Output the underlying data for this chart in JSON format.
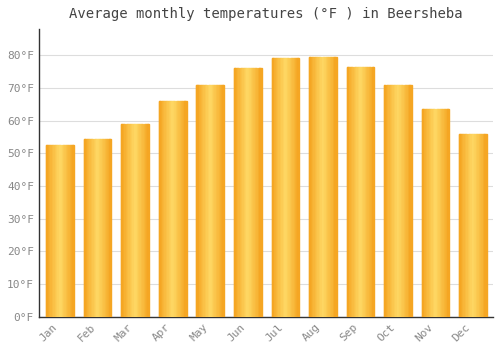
{
  "title": "Average monthly temperatures (°F ) in Beersheba",
  "months": [
    "Jan",
    "Feb",
    "Mar",
    "Apr",
    "May",
    "Jun",
    "Jul",
    "Aug",
    "Sep",
    "Oct",
    "Nov",
    "Dec"
  ],
  "values": [
    52.5,
    54.5,
    59.0,
    66.0,
    71.0,
    76.0,
    79.0,
    79.5,
    76.5,
    71.0,
    63.5,
    56.0
  ],
  "bar_color_center": "#FFD966",
  "bar_color_edge": "#F5A623",
  "background_color": "#FFFFFF",
  "plot_bg_color": "#FFFFFF",
  "grid_color": "#DDDDDD",
  "text_color": "#888888",
  "title_color": "#444444",
  "spine_color": "#333333",
  "ylim": [
    0,
    88
  ],
  "yticks": [
    0,
    10,
    20,
    30,
    40,
    50,
    60,
    70,
    80
  ],
  "ytick_labels": [
    "0°F",
    "10°F",
    "20°F",
    "30°F",
    "40°F",
    "50°F",
    "60°F",
    "70°F",
    "80°F"
  ],
  "title_fontsize": 10,
  "tick_fontsize": 8,
  "font_family": "monospace",
  "bar_width": 0.7,
  "gradient_steps": 20
}
